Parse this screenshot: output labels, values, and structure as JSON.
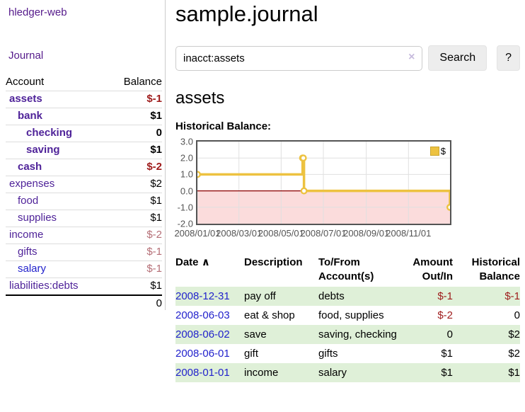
{
  "app": {
    "brand": "hledger-web"
  },
  "sidebar": {
    "journal_link": "Journal",
    "header": {
      "account": "Account",
      "balance": "Balance"
    },
    "accounts": [
      {
        "name": "assets",
        "indent": 0,
        "bold": true,
        "balance": "$-1",
        "balance_class": "neg-strong"
      },
      {
        "name": "bank",
        "indent": 1,
        "bold": true,
        "balance": "$1",
        "balance_class": ""
      },
      {
        "name": "checking",
        "indent": 2,
        "bold": true,
        "balance": "0",
        "balance_class": ""
      },
      {
        "name": "saving",
        "indent": 2,
        "bold": true,
        "balance": "$1",
        "balance_class": ""
      },
      {
        "name": "cash",
        "indent": 1,
        "bold": true,
        "balance": "$-2",
        "balance_class": "neg-strong"
      },
      {
        "name": "expenses",
        "indent": 0,
        "bold": false,
        "balance": "$2",
        "balance_class": ""
      },
      {
        "name": "food",
        "indent": 1,
        "bold": false,
        "balance": "$1",
        "balance_class": ""
      },
      {
        "name": "supplies",
        "indent": 1,
        "bold": false,
        "balance": "$1",
        "balance_class": ""
      },
      {
        "name": "income",
        "indent": 0,
        "bold": false,
        "balance": "$-2",
        "balance_class": "neg-soft"
      },
      {
        "name": "gifts",
        "indent": 1,
        "bold": false,
        "balance": "$-1",
        "balance_class": "neg-soft"
      },
      {
        "name": "salary",
        "indent": 1,
        "bold": false,
        "balance": "$-1",
        "balance_class": "neg-soft",
        "link_color": "blue"
      },
      {
        "name": "liabilities:debts",
        "indent": 0,
        "bold": false,
        "balance": "$1",
        "balance_class": ""
      }
    ],
    "total": "0"
  },
  "main": {
    "title": "sample.journal",
    "search": {
      "value": "inacct:assets",
      "clear_icon": "×",
      "button_label": "Search",
      "help_label": "?"
    },
    "account_heading": "assets",
    "chart_label": "Historical Balance:"
  },
  "chart_data": {
    "type": "line",
    "steps": true,
    "title": "Historical Balance",
    "series_name": "$",
    "x_range": [
      "2008-01-01",
      "2008-12-31"
    ],
    "ylim": [
      -2,
      3
    ],
    "points": [
      {
        "date": "2008-01-01",
        "balance": 1
      },
      {
        "date": "2008-06-01",
        "balance": 2
      },
      {
        "date": "2008-06-02",
        "balance": 2
      },
      {
        "date": "2008-06-03",
        "balance": 0
      },
      {
        "date": "2008-12-31",
        "balance": -1
      }
    ],
    "y_ticks": [
      {
        "label": "3.0",
        "value": 3
      },
      {
        "label": "2.0",
        "value": 2
      },
      {
        "label": "1.0",
        "value": 1
      },
      {
        "label": "0.0",
        "value": 0
      },
      {
        "label": "-1.0",
        "value": -1
      },
      {
        "label": "-2.0",
        "value": -2
      }
    ],
    "x_ticks": [
      {
        "label": "2008/01/01",
        "date": "2008-01-01"
      },
      {
        "label": "2008/03/01",
        "date": "2008-03-01"
      },
      {
        "label": "2008/05/01",
        "date": "2008-05-01"
      },
      {
        "label": "2008/07/01",
        "date": "2008-07-01"
      },
      {
        "label": "2008/09/01",
        "date": "2008-09-01"
      },
      {
        "label": "2008/11/01",
        "date": "2008-11-01"
      }
    ],
    "legend": [
      {
        "label": "$",
        "color": "#edc240"
      }
    ],
    "legend_position": "top-right",
    "grid": true,
    "colors": {
      "line": "#edc240",
      "marker_fill": "#ffffff",
      "negative_fill": "#fbdcdc",
      "zero_line": "#8b0000",
      "grid": "#e0e0e0",
      "border": "#545454",
      "tick_text": "#545454"
    }
  },
  "register": {
    "headers": {
      "date": "Date",
      "sort_icon": "∧",
      "description": "Description",
      "account_line1": "To/From",
      "account_line2": "Account(s)",
      "amount_line1": "Amount",
      "amount_line2": "Out/In",
      "balance_line1": "Historical",
      "balance_line2": "Balance"
    },
    "rows": [
      {
        "date": "2008-12-31",
        "description": "pay off",
        "accounts": "debts",
        "amount": "$-1",
        "amount_neg": true,
        "balance": "$-1",
        "balance_neg": true,
        "highlight": true
      },
      {
        "date": "2008-06-03",
        "description": "eat & shop",
        "accounts": "food, supplies",
        "amount": "$-2",
        "amount_neg": true,
        "balance": "0",
        "balance_neg": false,
        "highlight": false
      },
      {
        "date": "2008-06-02",
        "description": "save",
        "accounts": "saving, checking",
        "amount": "0",
        "amount_neg": false,
        "balance": "$2",
        "balance_neg": false,
        "highlight": true
      },
      {
        "date": "2008-06-01",
        "description": "gift",
        "accounts": "gifts",
        "amount": "$1",
        "amount_neg": false,
        "balance": "$2",
        "balance_neg": false,
        "highlight": false
      },
      {
        "date": "2008-01-01",
        "description": "income",
        "accounts": "salary",
        "amount": "$1",
        "amount_neg": false,
        "balance": "$1",
        "balance_neg": false,
        "highlight": true
      }
    ]
  }
}
